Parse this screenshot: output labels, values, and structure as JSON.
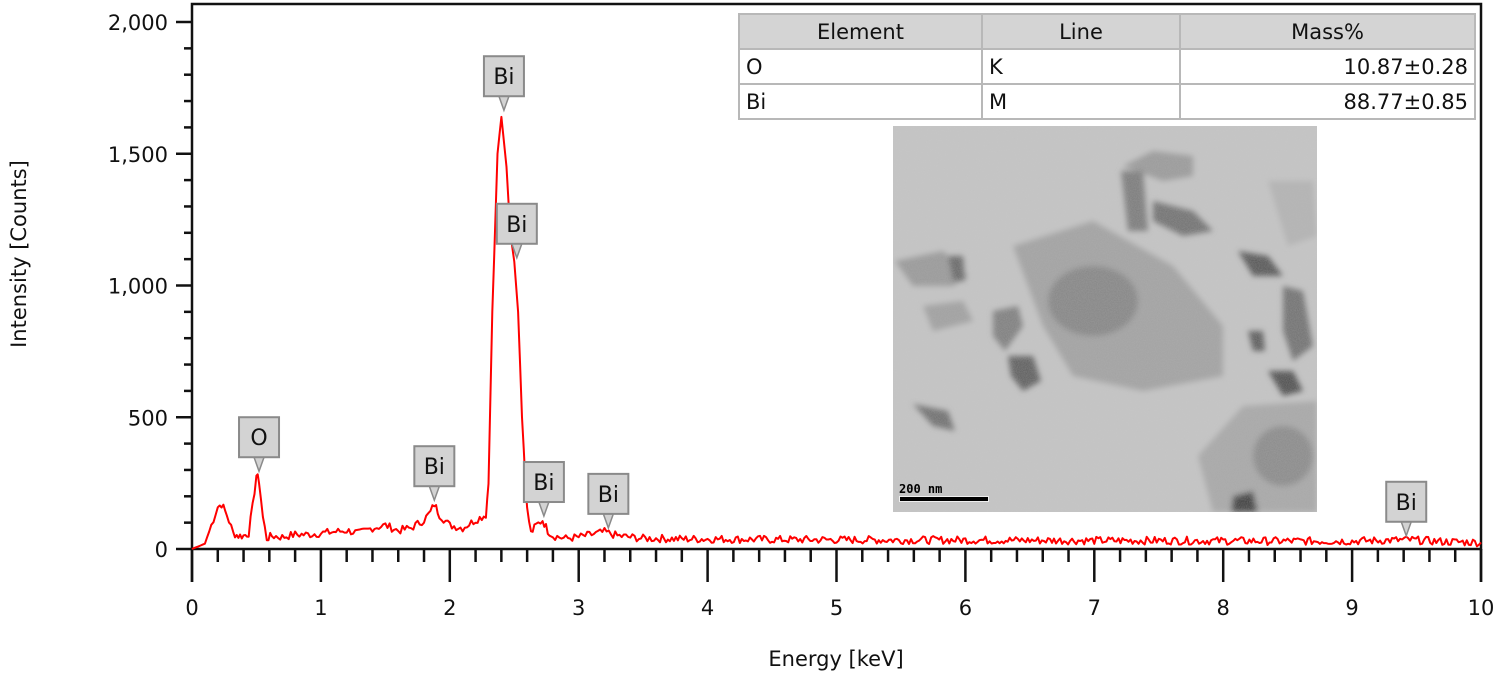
{
  "chart_data": {
    "type": "line",
    "title": "",
    "xlabel": "Energy [keV]",
    "ylabel": "Intensity [Counts]",
    "xlim": [
      0,
      10
    ],
    "ylim": [
      0,
      2000
    ],
    "x_ticks": [
      "0",
      "1",
      "2",
      "3",
      "4",
      "5",
      "6",
      "7",
      "8",
      "9",
      "10"
    ],
    "y_ticks": [
      "0",
      "500",
      "1,000",
      "1,500",
      "2,000"
    ],
    "grid": false,
    "legend": null,
    "line_color": "#ff0000",
    "series": [
      {
        "name": "EDS spectrum",
        "x": [
          0.0,
          0.1,
          0.15,
          0.2,
          0.23,
          0.27,
          0.32,
          0.36,
          0.4,
          0.44,
          0.47,
          0.5,
          0.52,
          0.55,
          0.58,
          0.62,
          0.7,
          0.8,
          0.9,
          1.0,
          1.1,
          1.2,
          1.3,
          1.4,
          1.5,
          1.6,
          1.7,
          1.8,
          1.85,
          1.88,
          1.92,
          2.0,
          2.1,
          2.2,
          2.28,
          2.3,
          2.33,
          2.37,
          2.4,
          2.44,
          2.47,
          2.5,
          2.53,
          2.56,
          2.6,
          2.63,
          2.67,
          2.72,
          2.76,
          2.8,
          2.9,
          3.0,
          3.1,
          3.2,
          3.3,
          3.4,
          3.5,
          3.6,
          3.8,
          4.0,
          4.5,
          5.0,
          5.5,
          6.0,
          6.5,
          7.0,
          7.5,
          8.0,
          8.5,
          9.0,
          9.45,
          9.7,
          10.0
        ],
        "y": [
          0,
          20,
          90,
          160,
          170,
          130,
          60,
          50,
          50,
          60,
          160,
          280,
          260,
          120,
          40,
          50,
          45,
          55,
          55,
          60,
          65,
          70,
          60,
          80,
          90,
          70,
          80,
          110,
          140,
          170,
          130,
          90,
          80,
          110,
          130,
          250,
          900,
          1500,
          1640,
          1450,
          1200,
          1090,
          900,
          500,
          150,
          60,
          90,
          110,
          70,
          50,
          40,
          45,
          55,
          65,
          50,
          45,
          40,
          40,
          38,
          38,
          36,
          35,
          34,
          34,
          33,
          32,
          32,
          31,
          30,
          30,
          35,
          28,
          25
        ]
      }
    ],
    "annotations": [
      {
        "label": "O",
        "x": 0.52,
        "y": 280
      },
      {
        "label": "Bi",
        "x": 1.88,
        "y": 170
      },
      {
        "label": "Bi",
        "x": 2.42,
        "y": 1650
      },
      {
        "label": "Bi",
        "x": 2.52,
        "y": 1090
      },
      {
        "label": "Bi",
        "x": 2.73,
        "y": 110
      },
      {
        "label": "Bi",
        "x": 3.23,
        "y": 65
      },
      {
        "label": "Bi",
        "x": 9.42,
        "y": 35
      }
    ]
  },
  "table": {
    "headers": [
      "Element",
      "Line",
      "Mass%"
    ],
    "rows": [
      {
        "element": "O",
        "line": "K",
        "mass": "10.87±0.28"
      },
      {
        "element": "Bi",
        "line": "M",
        "mass": "88.77±0.85"
      }
    ]
  },
  "inset": {
    "scale_bar": "200 nm"
  }
}
